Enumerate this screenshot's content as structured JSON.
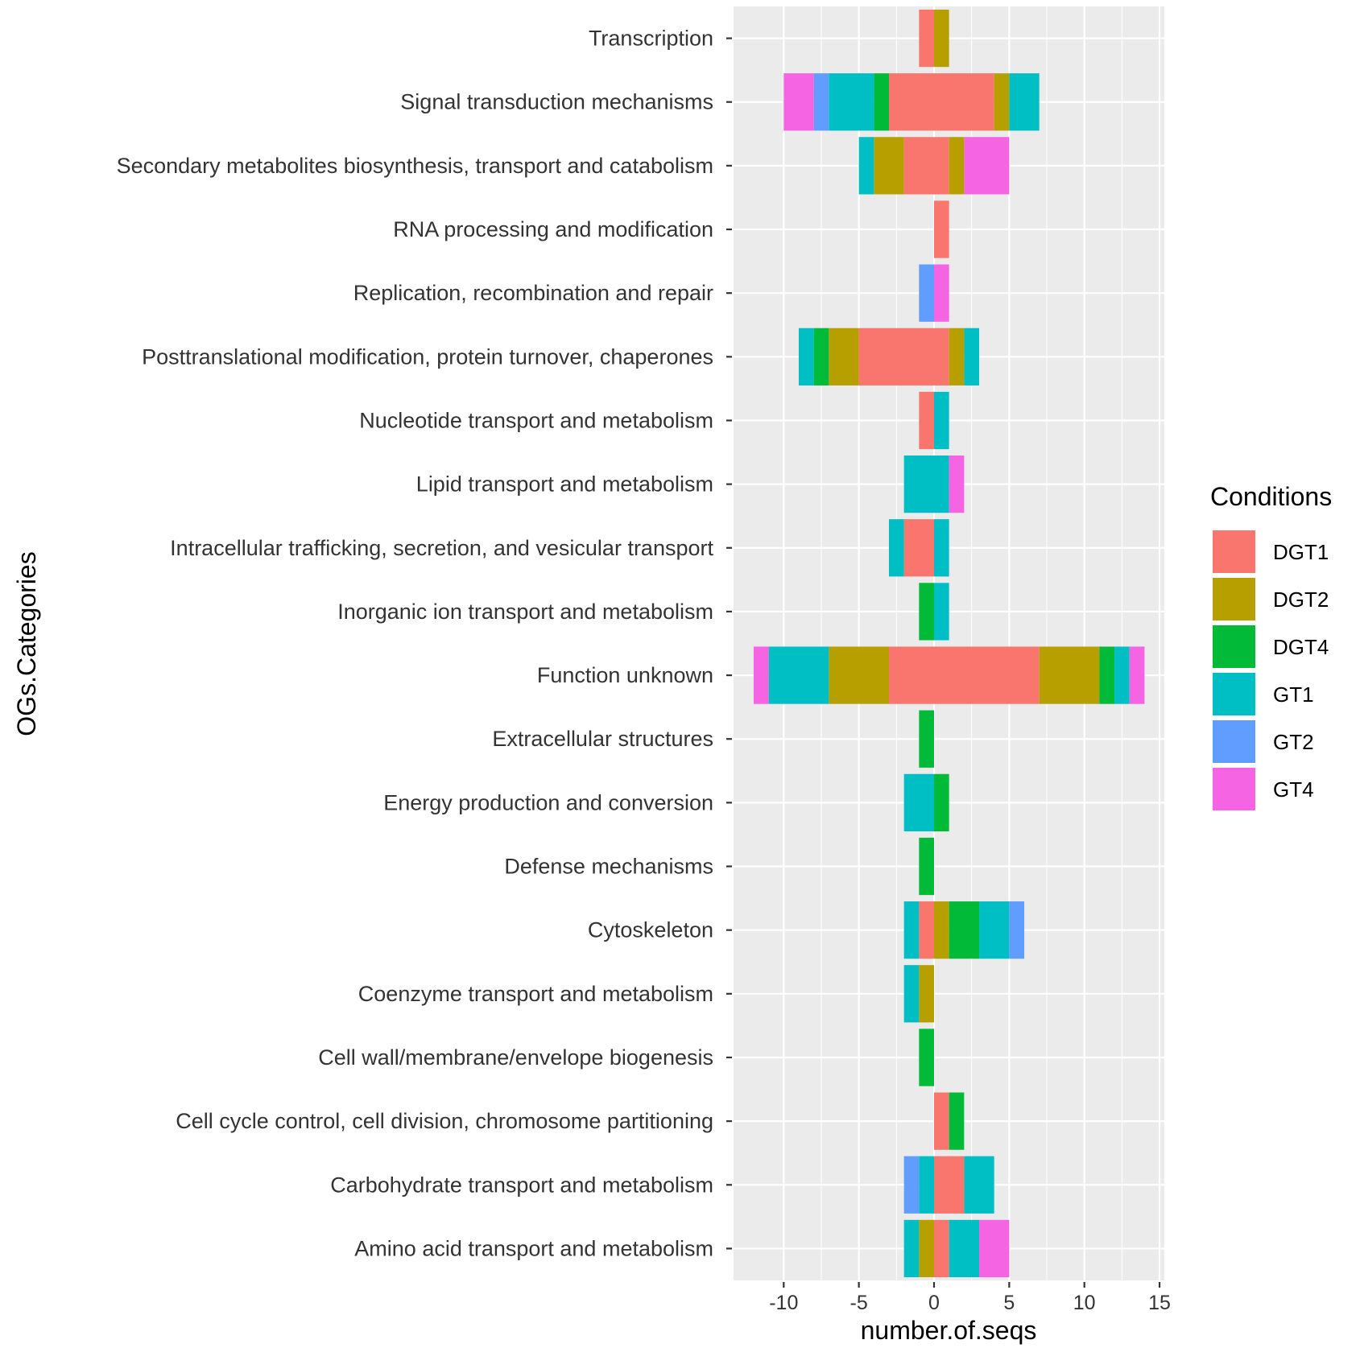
{
  "chart_data": {
    "type": "bar",
    "orientation": "horizontal",
    "stacked": true,
    "xlabel": "number.of.seqs",
    "ylabel": "OGs.Categories",
    "xlim": [
      -12.5,
      15.5
    ],
    "xticks": [
      -10,
      -5,
      0,
      5,
      10,
      15
    ],
    "grid": true,
    "legend": {
      "title": "Conditions",
      "position": "right",
      "entries": [
        {
          "name": "DGT1",
          "color": "#F8766D"
        },
        {
          "name": "DGT2",
          "color": "#B79F00"
        },
        {
          "name": "DGT4",
          "color": "#00BA38"
        },
        {
          "name": "GT1",
          "color": "#00BFC4"
        },
        {
          "name": "GT2",
          "color": "#619CFF"
        },
        {
          "name": "GT4",
          "color": "#F564E3"
        }
      ]
    },
    "categories": [
      "Transcription",
      "Signal transduction mechanisms",
      "Secondary metabolites biosynthesis, transport and catabolism",
      "RNA processing and modification",
      "Replication, recombination and repair",
      "Posttranslational modification, protein turnover, chaperones",
      "Nucleotide transport and metabolism",
      "Lipid transport and metabolism",
      "Intracellular trafficking, secretion, and vesicular transport",
      "Inorganic ion transport and metabolism",
      "Function unknown",
      "Extracellular structures",
      "Energy production and conversion",
      "Defense mechanisms",
      "Cytoskeleton",
      "Coenzyme transport and metabolism",
      "Cell wall/membrane/envelope biogenesis",
      "Cell cycle control, cell division, chromosome partitioning",
      "Carbohydrate transport and metabolism",
      "Amino acid transport and metabolism"
    ],
    "negative_series": [
      {
        "name": "DGT1",
        "values": [
          -1,
          -3,
          -2,
          0,
          0,
          -5,
          -1,
          0,
          -2,
          0,
          -3,
          0,
          0,
          0,
          -1,
          0,
          0,
          0,
          0,
          0
        ]
      },
      {
        "name": "DGT2",
        "values": [
          0,
          0,
          -2,
          0,
          0,
          -2,
          0,
          0,
          0,
          0,
          -4,
          0,
          0,
          0,
          0,
          -1,
          0,
          0,
          0,
          -1
        ]
      },
      {
        "name": "DGT4",
        "values": [
          0,
          -1,
          0,
          0,
          0,
          -1,
          0,
          0,
          0,
          -1,
          0,
          -1,
          0,
          -1,
          0,
          0,
          -1,
          0,
          0,
          0
        ]
      },
      {
        "name": "GT1",
        "values": [
          0,
          -3,
          -1,
          0,
          0,
          -1,
          0,
          -2,
          -1,
          0,
          -4,
          0,
          -2,
          0,
          -1,
          -1,
          0,
          0,
          -1,
          -1
        ]
      },
      {
        "name": "GT2",
        "values": [
          0,
          -1,
          0,
          0,
          -1,
          0,
          0,
          0,
          0,
          0,
          0,
          0,
          0,
          0,
          0,
          0,
          0,
          0,
          -1,
          0
        ]
      },
      {
        "name": "GT4",
        "values": [
          0,
          -2,
          0,
          0,
          0,
          0,
          0,
          0,
          0,
          0,
          -1,
          0,
          0,
          0,
          0,
          0,
          0,
          0,
          0,
          0
        ]
      }
    ],
    "positive_series": [
      {
        "name": "DGT1",
        "values": [
          0,
          4,
          1,
          1,
          0,
          1,
          0,
          0,
          0,
          0,
          7,
          0,
          0,
          0,
          0,
          0,
          0,
          1,
          2,
          1
        ]
      },
      {
        "name": "DGT2",
        "values": [
          1,
          1,
          1,
          0,
          0,
          1,
          0,
          0,
          0,
          0,
          4,
          0,
          0,
          0,
          1,
          0,
          0,
          0,
          0,
          0
        ]
      },
      {
        "name": "DGT4",
        "values": [
          0,
          0,
          0,
          0,
          0,
          0,
          0,
          0,
          0,
          0,
          1,
          0,
          1,
          0,
          2,
          0,
          0,
          1,
          0,
          0
        ]
      },
      {
        "name": "GT1",
        "values": [
          0,
          2,
          0,
          0,
          0,
          1,
          1,
          1,
          1,
          1,
          1,
          0,
          0,
          0,
          2,
          0,
          0,
          0,
          2,
          2
        ]
      },
      {
        "name": "GT2",
        "values": [
          0,
          0,
          0,
          0,
          0,
          0,
          0,
          0,
          0,
          0,
          0,
          0,
          0,
          0,
          1,
          0,
          0,
          0,
          0,
          0
        ]
      },
      {
        "name": "GT4",
        "values": [
          0,
          0,
          3,
          0,
          1,
          0,
          0,
          1,
          0,
          0,
          1,
          0,
          0,
          0,
          0,
          0,
          0,
          0,
          0,
          2
        ]
      }
    ]
  }
}
